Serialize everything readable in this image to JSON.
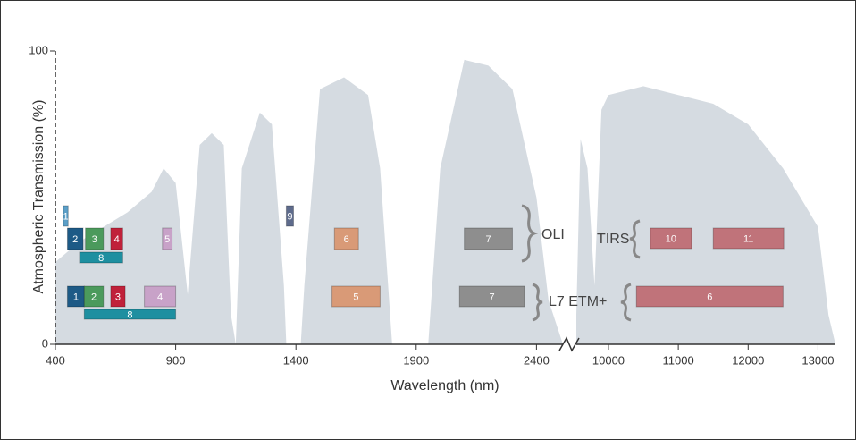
{
  "chart_data": {
    "type": "band_diagram",
    "y_label": "Atmospheric Transmission (%)",
    "x_label": "Wavelength (nm)",
    "ylim": [
      0,
      100
    ],
    "yticks": [
      0,
      100
    ],
    "area_color": "#d5dbe1",
    "x_segments": [
      {
        "xlim": [
          400,
          2510
        ],
        "xticks": [
          400,
          900,
          1400,
          1900,
          2400
        ]
      },
      {
        "xlim": [
          9540,
          13250
        ],
        "xticks": [
          10000,
          11000,
          12000,
          13000
        ]
      }
    ],
    "transmission": [
      {
        "x": [
          400,
          500,
          600,
          700,
          800,
          850,
          900,
          950,
          1000,
          1050,
          1100,
          1130,
          1150,
          1175,
          1250,
          1300,
          1350,
          1360,
          1420,
          1435,
          1500,
          1600,
          1700,
          1750,
          1800,
          1950,
          2000,
          2100,
          2200,
          2300,
          2400,
          2450,
          2510
        ],
        "values": [
          28,
          35,
          40,
          45,
          52,
          60,
          55,
          17,
          68,
          72,
          68,
          10,
          0,
          60,
          79,
          75,
          20,
          0,
          0,
          20,
          87,
          91,
          85,
          60,
          0,
          0,
          60,
          97,
          95,
          87,
          50,
          15,
          0
        ]
      },
      {
        "x": [
          9540,
          9600,
          9700,
          9800,
          9900,
          10000,
          10500,
          11000,
          11500,
          12000,
          12500,
          13000,
          13150,
          13250
        ],
        "values": [
          10,
          70,
          60,
          20,
          80,
          85,
          88,
          85,
          82,
          75,
          60,
          40,
          10,
          0
        ]
      }
    ],
    "instruments": [
      {
        "name": "OLI",
        "rows": [
          [
            {
              "label": "1",
              "min": 433,
              "max": 453,
              "color": "#5b9fc8"
            },
            {
              "label": "9",
              "min": 1360,
              "max": 1390,
              "color": "#5e6b8c"
            }
          ],
          [
            {
              "label": "2",
              "min": 450,
              "max": 515,
              "color": "#1d5a86"
            },
            {
              "label": "3",
              "min": 525,
              "max": 600,
              "color": "#4b9a5c"
            },
            {
              "label": "4",
              "min": 630,
              "max": 680,
              "color": "#c0213a"
            },
            {
              "label": "5",
              "min": 845,
              "max": 885,
              "color": "#c8a2c8"
            },
            {
              "label": "6",
              "min": 1560,
              "max": 1660,
              "color": "#d99a77"
            },
            {
              "label": "7",
              "min": 2100,
              "max": 2300,
              "color": "#8e8e8e"
            }
          ],
          [
            {
              "label": "8",
              "min": 500,
              "max": 680,
              "color": "#1e8fa0"
            }
          ]
        ]
      },
      {
        "name": "TIRS",
        "rows": [
          [
            {
              "label": "10",
              "min": 10600,
              "max": 11190,
              "color": "#c0737a"
            },
            {
              "label": "11",
              "min": 11500,
              "max": 12510,
              "color": "#c0737a"
            }
          ]
        ]
      },
      {
        "name": "L7 ETM+",
        "rows": [
          [
            {
              "label": "1",
              "min": 450,
              "max": 520,
              "color": "#1d5a86"
            },
            {
              "label": "2",
              "min": 520,
              "max": 600,
              "color": "#4b9a5c"
            },
            {
              "label": "3",
              "min": 630,
              "max": 690,
              "color": "#c0213a"
            },
            {
              "label": "4",
              "min": 770,
              "max": 900,
              "color": "#c8a2c8"
            },
            {
              "label": "5",
              "min": 1550,
              "max": 1750,
              "color": "#d99a77"
            },
            {
              "label": "7",
              "min": 2080,
              "max": 2350,
              "color": "#8e8e8e"
            },
            {
              "label": "6",
              "min": 10400,
              "max": 12500,
              "color": "#c0737a"
            }
          ],
          [
            {
              "label": "8",
              "min": 520,
              "max": 900,
              "color": "#1e8fa0"
            }
          ]
        ]
      }
    ]
  }
}
